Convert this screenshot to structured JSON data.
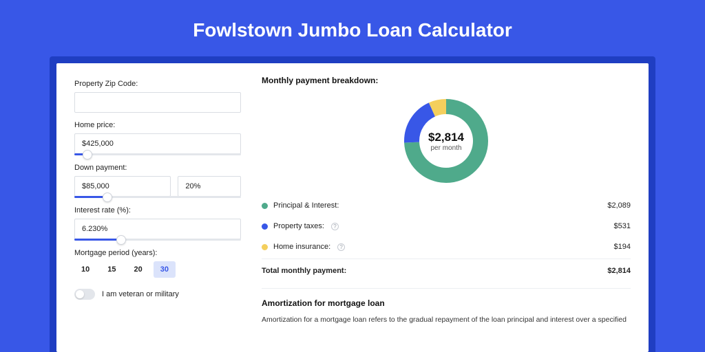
{
  "page": {
    "title": "Fowlstown Jumbo Loan Calculator",
    "background_color": "#3857e7",
    "panel_border_color": "#1f3ec2"
  },
  "form": {
    "zip": {
      "label": "Property Zip Code:",
      "value": ""
    },
    "home_price": {
      "label": "Home price:",
      "value": "$425,000",
      "slider_pct": 8
    },
    "down_payment": {
      "label": "Down payment:",
      "amount": "$85,000",
      "pct": "20%",
      "slider_pct": 20
    },
    "interest_rate": {
      "label": "Interest rate (%):",
      "value": "6.230%",
      "slider_pct": 28
    },
    "mortgage_period": {
      "label": "Mortgage period (years):",
      "options": [
        "10",
        "15",
        "20",
        "30"
      ],
      "selected": "30"
    },
    "veteran": {
      "label": "I am veteran or military",
      "value": false
    }
  },
  "breakdown": {
    "title": "Monthly payment breakdown:",
    "chart": {
      "type": "donut",
      "center_amount": "$2,814",
      "center_sub": "per month",
      "stroke_width": 22,
      "radius": 50,
      "slices": [
        {
          "key": "principal_interest",
          "value": 2089,
          "pct": 74.2,
          "color": "#4faa8b"
        },
        {
          "key": "property_taxes",
          "value": 531,
          "pct": 18.9,
          "color": "#3857e7"
        },
        {
          "key": "home_insurance",
          "value": 194,
          "pct": 6.9,
          "color": "#f4cf5d"
        }
      ]
    },
    "rows": [
      {
        "label": "Principal & Interest:",
        "value": "$2,089",
        "color": "#4faa8b",
        "info": false
      },
      {
        "label": "Property taxes:",
        "value": "$531",
        "color": "#3857e7",
        "info": true
      },
      {
        "label": "Home insurance:",
        "value": "$194",
        "color": "#f4cf5d",
        "info": true
      }
    ],
    "total": {
      "label": "Total monthly payment:",
      "value": "$2,814"
    }
  },
  "amortization": {
    "title": "Amortization for mortgage loan",
    "text": "Amortization for a mortgage loan refers to the gradual repayment of the loan principal and interest over a specified"
  }
}
